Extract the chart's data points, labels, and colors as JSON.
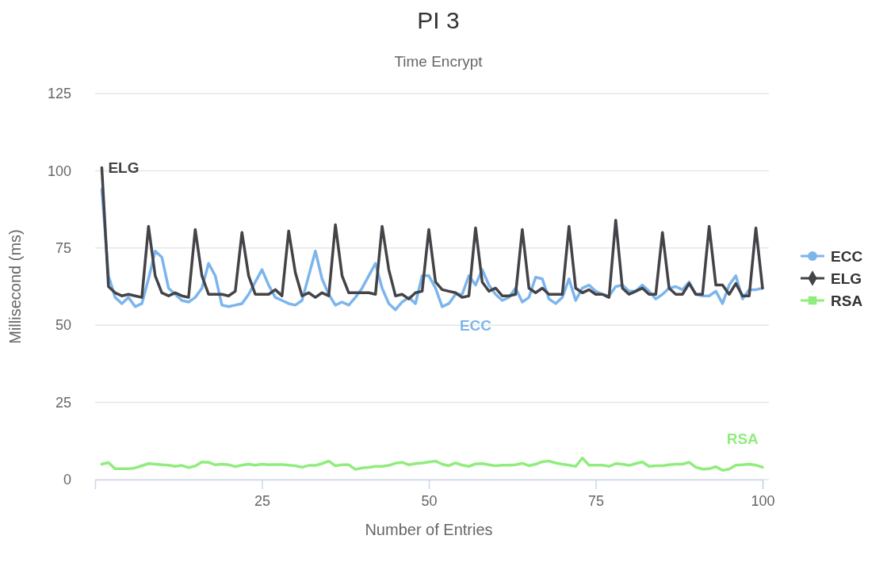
{
  "chart_data": {
    "type": "line",
    "title": "PI 3",
    "subtitle": "Time Encrypt",
    "xlabel": "Number of Entries",
    "ylabel": "Millisecond (ms)",
    "x": [
      1,
      2,
      3,
      4,
      5,
      6,
      7,
      8,
      9,
      10,
      11,
      12,
      13,
      14,
      15,
      16,
      17,
      18,
      19,
      20,
      21,
      22,
      23,
      24,
      25,
      26,
      27,
      28,
      29,
      30,
      31,
      32,
      33,
      34,
      35,
      36,
      37,
      38,
      39,
      40,
      41,
      42,
      43,
      44,
      45,
      46,
      47,
      48,
      49,
      50,
      51,
      52,
      53,
      54,
      55,
      56,
      57,
      58,
      59,
      60,
      61,
      62,
      63,
      64,
      65,
      66,
      67,
      68,
      69,
      70,
      71,
      72,
      73,
      74,
      75,
      76,
      77,
      78,
      79,
      80,
      81,
      82,
      83,
      84,
      85,
      86,
      87,
      88,
      89,
      90,
      91,
      92,
      93,
      94,
      95,
      96,
      97,
      98,
      99,
      100
    ],
    "xlim": [
      0,
      100
    ],
    "xticks": [
      25,
      50,
      75,
      100
    ],
    "ylim": [
      0,
      125
    ],
    "yticks": [
      0,
      25,
      50,
      75,
      100,
      125
    ],
    "grid": "y",
    "legend": "right",
    "line_style": "solid",
    "series": [
      {
        "name": "ECC",
        "color": "#7cb5ec",
        "values": [
          94,
          66,
          59,
          57,
          59,
          56,
          57,
          65,
          74,
          72,
          62,
          60,
          58,
          57.5,
          59,
          62,
          70,
          66,
          56.5,
          56,
          56.5,
          57,
          60,
          64,
          68,
          63,
          59,
          58,
          57,
          56.5,
          58,
          66,
          74,
          65,
          60,
          56.5,
          57.5,
          56.5,
          59,
          62,
          66,
          70,
          62,
          57,
          55,
          57.5,
          59,
          57,
          66,
          66,
          62,
          56,
          57,
          60,
          60,
          66,
          63,
          68,
          63,
          60,
          58,
          59,
          62,
          57.5,
          59,
          65.5,
          65,
          58.5,
          57,
          59,
          65,
          58,
          62,
          63,
          61,
          60,
          59.5,
          62.5,
          63,
          61,
          61,
          63,
          61,
          58.5,
          60,
          62,
          62.5,
          61.5,
          64,
          60,
          59.5,
          59.5,
          61,
          57,
          63,
          66,
          58.5,
          61.5,
          61.5,
          62
        ]
      },
      {
        "name": "ELG",
        "color": "#434348",
        "values": [
          101,
          62.5,
          60.5,
          59.5,
          60,
          59.5,
          59,
          82,
          66,
          60.5,
          59.5,
          60.5,
          59.5,
          59,
          81,
          66,
          60,
          60,
          60,
          59.5,
          61,
          80,
          66,
          60,
          60,
          60,
          61.5,
          59.5,
          80.5,
          67,
          59.5,
          60.5,
          59,
          60.5,
          59.5,
          82.5,
          66,
          60.5,
          60.5,
          60.5,
          60.5,
          60,
          82,
          68,
          59.5,
          60,
          58.5,
          60.5,
          61,
          81,
          64,
          61.5,
          61,
          60.5,
          59,
          59.5,
          81.5,
          64,
          61,
          62,
          59.5,
          59.5,
          60,
          81,
          62,
          60.5,
          62,
          60,
          60,
          60,
          82,
          62,
          60.5,
          61.5,
          60,
          60,
          59,
          84,
          62,
          60,
          61,
          62,
          60,
          60,
          80,
          62,
          60,
          60,
          63.5,
          60,
          60,
          82,
          63,
          63,
          60,
          63.5,
          59.5,
          59.5,
          81.5,
          62
        ]
      },
      {
        "name": "RSA",
        "color": "#90ed7d",
        "values": [
          5,
          5.5,
          3.5,
          3.5,
          3.5,
          3.8,
          4.5,
          5.2,
          5,
          4.8,
          4.7,
          4.3,
          4.6,
          3.9,
          4.4,
          5.7,
          5.6,
          4.8,
          5,
          4.8,
          4.2,
          4.7,
          5,
          4.7,
          5,
          4.8,
          4.9,
          4.9,
          4.7,
          4.5,
          4,
          4.6,
          4.6,
          5.2,
          6,
          4.5,
          4.8,
          4.8,
          3.3,
          3.8,
          4,
          4.3,
          4.3,
          4.6,
          5.3,
          5.6,
          4.8,
          5.2,
          5.4,
          5.7,
          6,
          5,
          4.5,
          5.4,
          4.7,
          4.3,
          5.1,
          5.2,
          4.8,
          4.5,
          4.7,
          4.7,
          4.8,
          5.3,
          4.5,
          5,
          5.8,
          6,
          5.4,
          5,
          4.7,
          4.3,
          7,
          4.7,
          4.7,
          4.7,
          4.3,
          5.2,
          5,
          4.6,
          5.2,
          5.7,
          4.3,
          4.5,
          4.5,
          4.8,
          5,
          5,
          5.6,
          4,
          3.4,
          3.5,
          4.2,
          3,
          3.4,
          4.7,
          4.8,
          5,
          4.7,
          4
        ]
      }
    ]
  }
}
